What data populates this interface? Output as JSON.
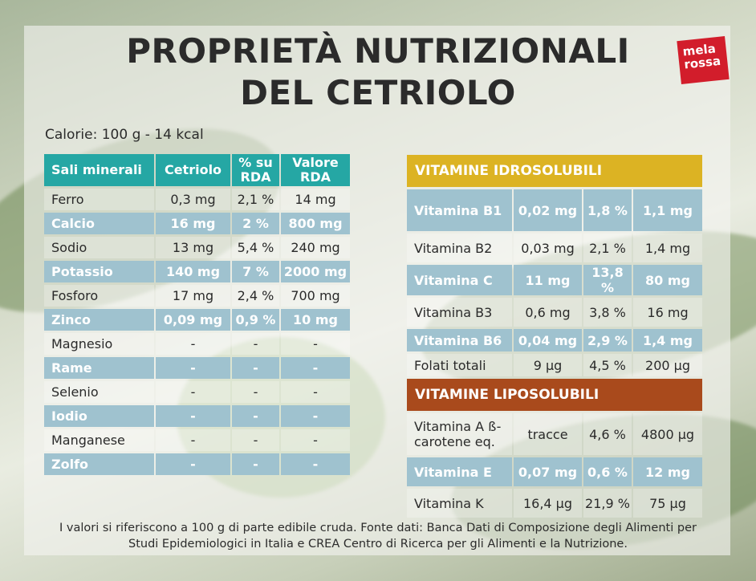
{
  "title_line1": "PROPRIETÀ NUTRIZIONALI",
  "title_line2": "DEL CETRIOLO",
  "logo": {
    "line1": "mela",
    "line2": "rossa"
  },
  "calories": "Calorie: 100 g - 14 kcal",
  "minerals": {
    "headers": [
      "Sali minerali",
      "Cetriolo",
      "% su RDA",
      "Valore RDA"
    ],
    "rows": [
      [
        "Ferro",
        "0,3 mg",
        "2,1 %",
        "14 mg"
      ],
      [
        "Calcio",
        "16 mg",
        "2 %",
        "800 mg"
      ],
      [
        "Sodio",
        "13 mg",
        "5,4 %",
        "240 mg"
      ],
      [
        "Potassio",
        "140 mg",
        "7 %",
        "2000 mg"
      ],
      [
        "Fosforo",
        "17 mg",
        "2,4 %",
        "700 mg"
      ],
      [
        "Zinco",
        "0,09 mg",
        "0,9 %",
        "10 mg"
      ],
      [
        "Magnesio",
        "-",
        "-",
        "-"
      ],
      [
        "Rame",
        "-",
        "-",
        "-"
      ],
      [
        "Selenio",
        "-",
        "-",
        "-"
      ],
      [
        "Iodio",
        "-",
        "-",
        "-"
      ],
      [
        "Manganese",
        "-",
        "-",
        "-"
      ],
      [
        "Zolfo",
        "-",
        "-",
        "-"
      ]
    ]
  },
  "hydro": {
    "header": "VITAMINE IDROSOLUBILI",
    "rows": [
      [
        "Vitamina B1",
        "0,02 mg",
        "1,8 %",
        "1,1 mg"
      ],
      [
        "Vitamina B2",
        "0,03 mg",
        "2,1 %",
        "1,4 mg"
      ],
      [
        "Vitamina C",
        "11 mg",
        "13,8 %",
        "80 mg"
      ],
      [
        "Vitamina B3",
        "0,6 mg",
        "3,8 %",
        "16 mg"
      ],
      [
        "Vitamina B6",
        "0,04 mg",
        "2,9 %",
        "1,4 mg"
      ],
      [
        "Folati totali",
        "9 µg",
        "4,5 %",
        "200 µg"
      ]
    ]
  },
  "lipo": {
    "header": "VITAMINE LIPOSOLUBILI",
    "rows": [
      [
        "Vitamina A ß-carotene eq.",
        "tracce",
        "4,6 %",
        "4800 µg"
      ],
      [
        "Vitamina E",
        "0,07 mg",
        "0,6 %",
        "12 mg"
      ],
      [
        "Vitamina K",
        "16,4 µg",
        "21,9 %",
        "75 µg"
      ]
    ]
  },
  "footnote_line1": "I valori si riferiscono a 100 g di parte edibile cruda. Fonte dati: Banca Dati di Composizione degli Alimenti per",
  "footnote_line2": "Studi Epidemiologici in Italia e CREA Centro di Ricerca per gli Alimenti e la Nutrizione."
}
